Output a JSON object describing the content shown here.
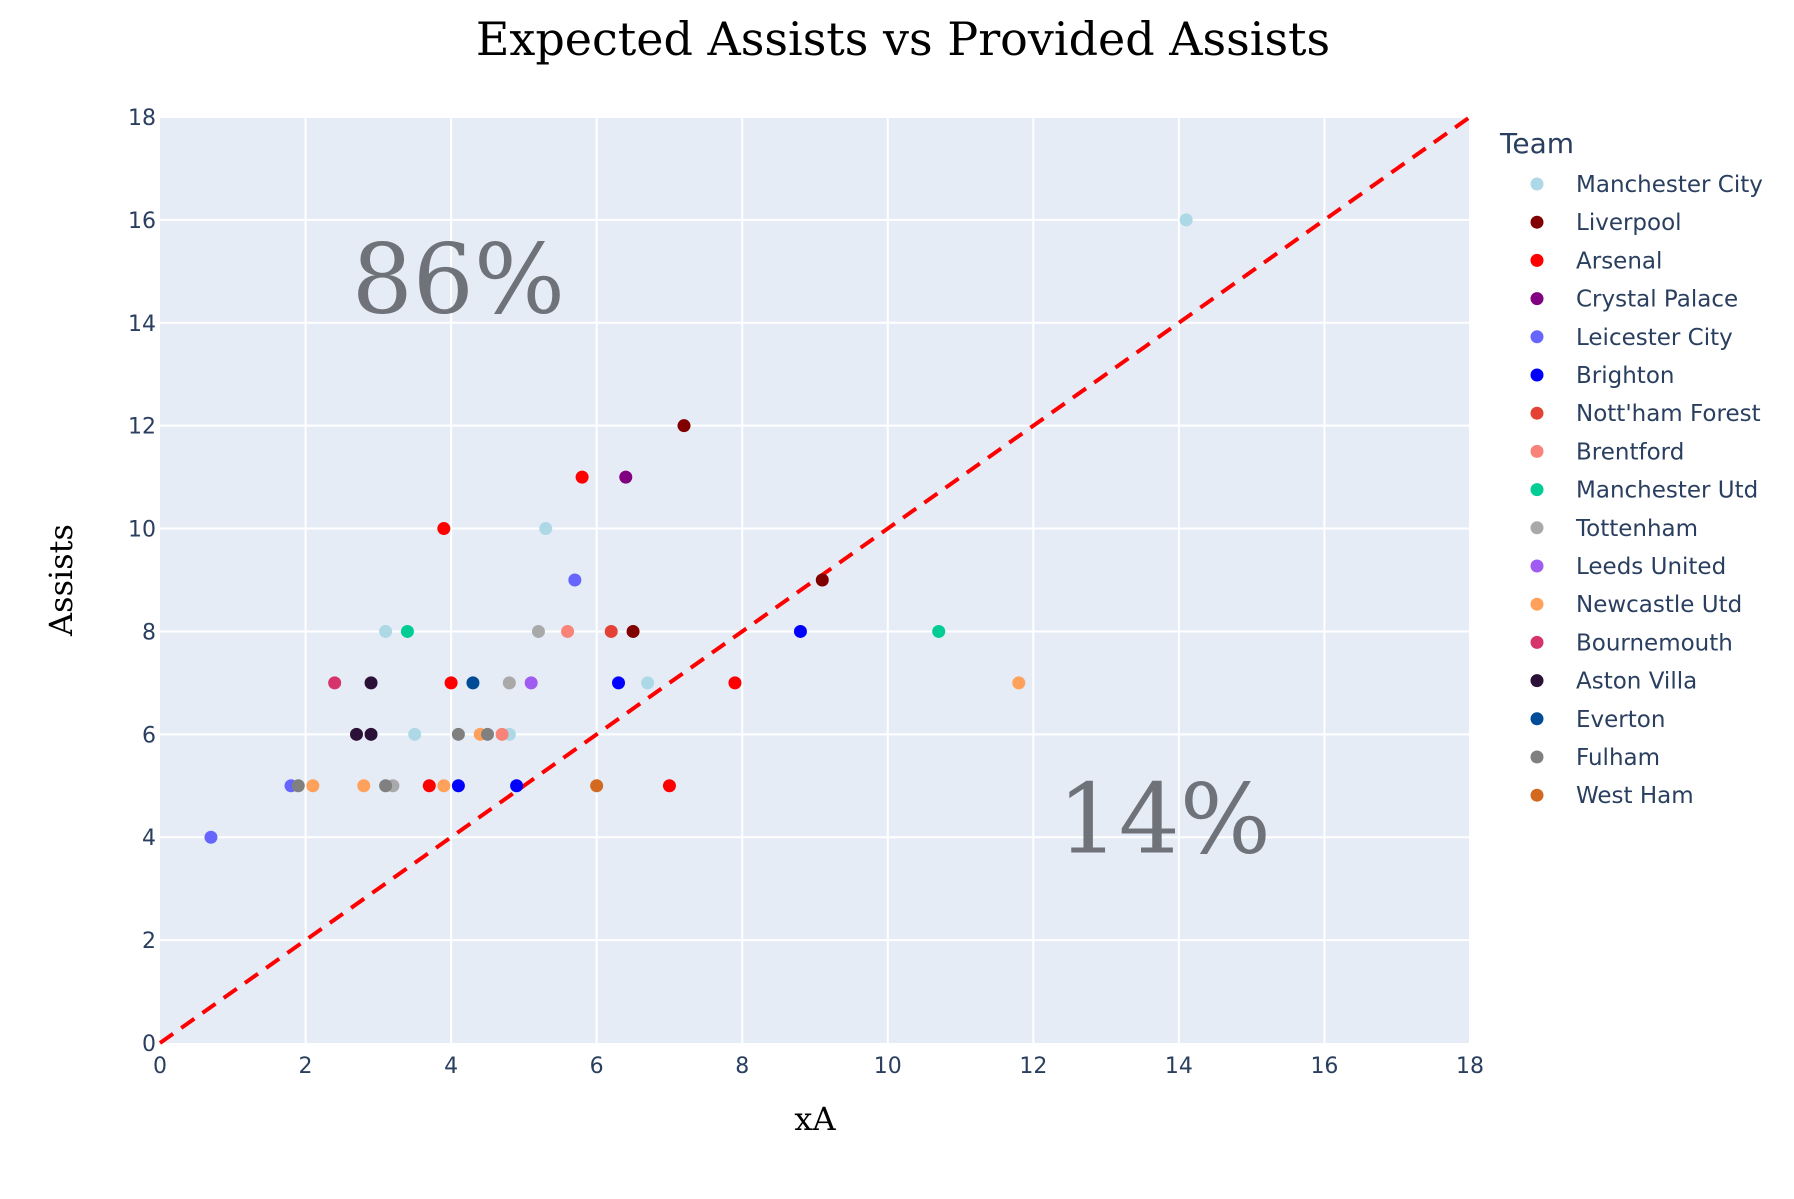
{
  "chart_data": {
    "type": "scatter",
    "title": "Expected Assists vs Provided Assists",
    "xlabel": "xA",
    "ylabel": "Assists",
    "xlim": [
      0,
      18
    ],
    "ylim": [
      0,
      18
    ],
    "xticks": [
      0,
      2,
      4,
      6,
      8,
      10,
      12,
      14,
      16,
      18
    ],
    "yticks": [
      0,
      2,
      4,
      6,
      8,
      10,
      12,
      14,
      16,
      18
    ],
    "grid": true,
    "legend_title": "Team",
    "legend_position": "right",
    "reference_line": {
      "from": [
        0,
        0
      ],
      "to": [
        18,
        18
      ],
      "color": "#ff0000",
      "style": "dashed"
    },
    "annotations": [
      {
        "text": "86%",
        "x": 4.1,
        "y": 14.2
      },
      {
        "text": "14%",
        "x": 13.8,
        "y": 3.7
      }
    ],
    "series": [
      {
        "name": "Manchester City",
        "color": "#add8e6",
        "points": [
          [
            14.1,
            16
          ],
          [
            5.3,
            10
          ],
          [
            3.1,
            8
          ],
          [
            3.5,
            6
          ],
          [
            6.7,
            7
          ],
          [
            4.8,
            6
          ]
        ]
      },
      {
        "name": "Liverpool",
        "color": "#800000",
        "points": [
          [
            7.2,
            12
          ],
          [
            9.1,
            9
          ],
          [
            6.5,
            8
          ]
        ]
      },
      {
        "name": "Arsenal",
        "color": "#ff0000",
        "points": [
          [
            5.8,
            11
          ],
          [
            3.9,
            10
          ],
          [
            4.0,
            7
          ],
          [
            7.9,
            7
          ],
          [
            3.7,
            5
          ],
          [
            7.0,
            5
          ]
        ]
      },
      {
        "name": "Crystal Palace",
        "color": "#800080",
        "points": [
          [
            6.4,
            11
          ]
        ]
      },
      {
        "name": "Leicester City",
        "color": "#6666ff",
        "points": [
          [
            5.7,
            9
          ],
          [
            1.8,
            5
          ],
          [
            0.7,
            4
          ]
        ]
      },
      {
        "name": "Brighton",
        "color": "#0000ff",
        "points": [
          [
            8.8,
            8
          ],
          [
            6.3,
            7
          ],
          [
            4.1,
            5
          ],
          [
            4.9,
            5
          ]
        ]
      },
      {
        "name": "Nott'ham Forest",
        "color": "#e34234",
        "points": [
          [
            6.2,
            8
          ]
        ]
      },
      {
        "name": "Brentford",
        "color": "#f88379",
        "points": [
          [
            5.6,
            8
          ],
          [
            4.7,
            6
          ]
        ]
      },
      {
        "name": "Manchester Utd",
        "color": "#00cc96",
        "points": [
          [
            3.4,
            8
          ],
          [
            10.7,
            8
          ]
        ]
      },
      {
        "name": "Tottenham",
        "color": "#a9a9a9",
        "points": [
          [
            5.2,
            8
          ],
          [
            4.8,
            7
          ],
          [
            3.2,
            5
          ]
        ]
      },
      {
        "name": "Leeds United",
        "color": "#a05cf0",
        "points": [
          [
            5.1,
            7
          ]
        ]
      },
      {
        "name": "Newcastle Utd",
        "color": "#ffa15a",
        "points": [
          [
            11.8,
            7
          ],
          [
            4.4,
            6
          ],
          [
            2.1,
            5
          ],
          [
            2.8,
            5
          ],
          [
            3.9,
            5
          ]
        ]
      },
      {
        "name": "Bournemouth",
        "color": "#d6336c",
        "points": [
          [
            2.4,
            7
          ]
        ]
      },
      {
        "name": "Aston Villa",
        "color": "#2b1138",
        "points": [
          [
            2.9,
            7
          ],
          [
            2.7,
            6
          ],
          [
            2.9,
            6
          ]
        ]
      },
      {
        "name": "Everton",
        "color": "#004c97",
        "points": [
          [
            4.3,
            7
          ]
        ]
      },
      {
        "name": "Fulham",
        "color": "#808080",
        "points": [
          [
            4.1,
            6
          ],
          [
            4.5,
            6
          ],
          [
            1.9,
            5
          ],
          [
            3.1,
            5
          ]
        ]
      },
      {
        "name": "West Ham",
        "color": "#d2691e",
        "points": [
          [
            6.0,
            5
          ]
        ]
      }
    ]
  }
}
